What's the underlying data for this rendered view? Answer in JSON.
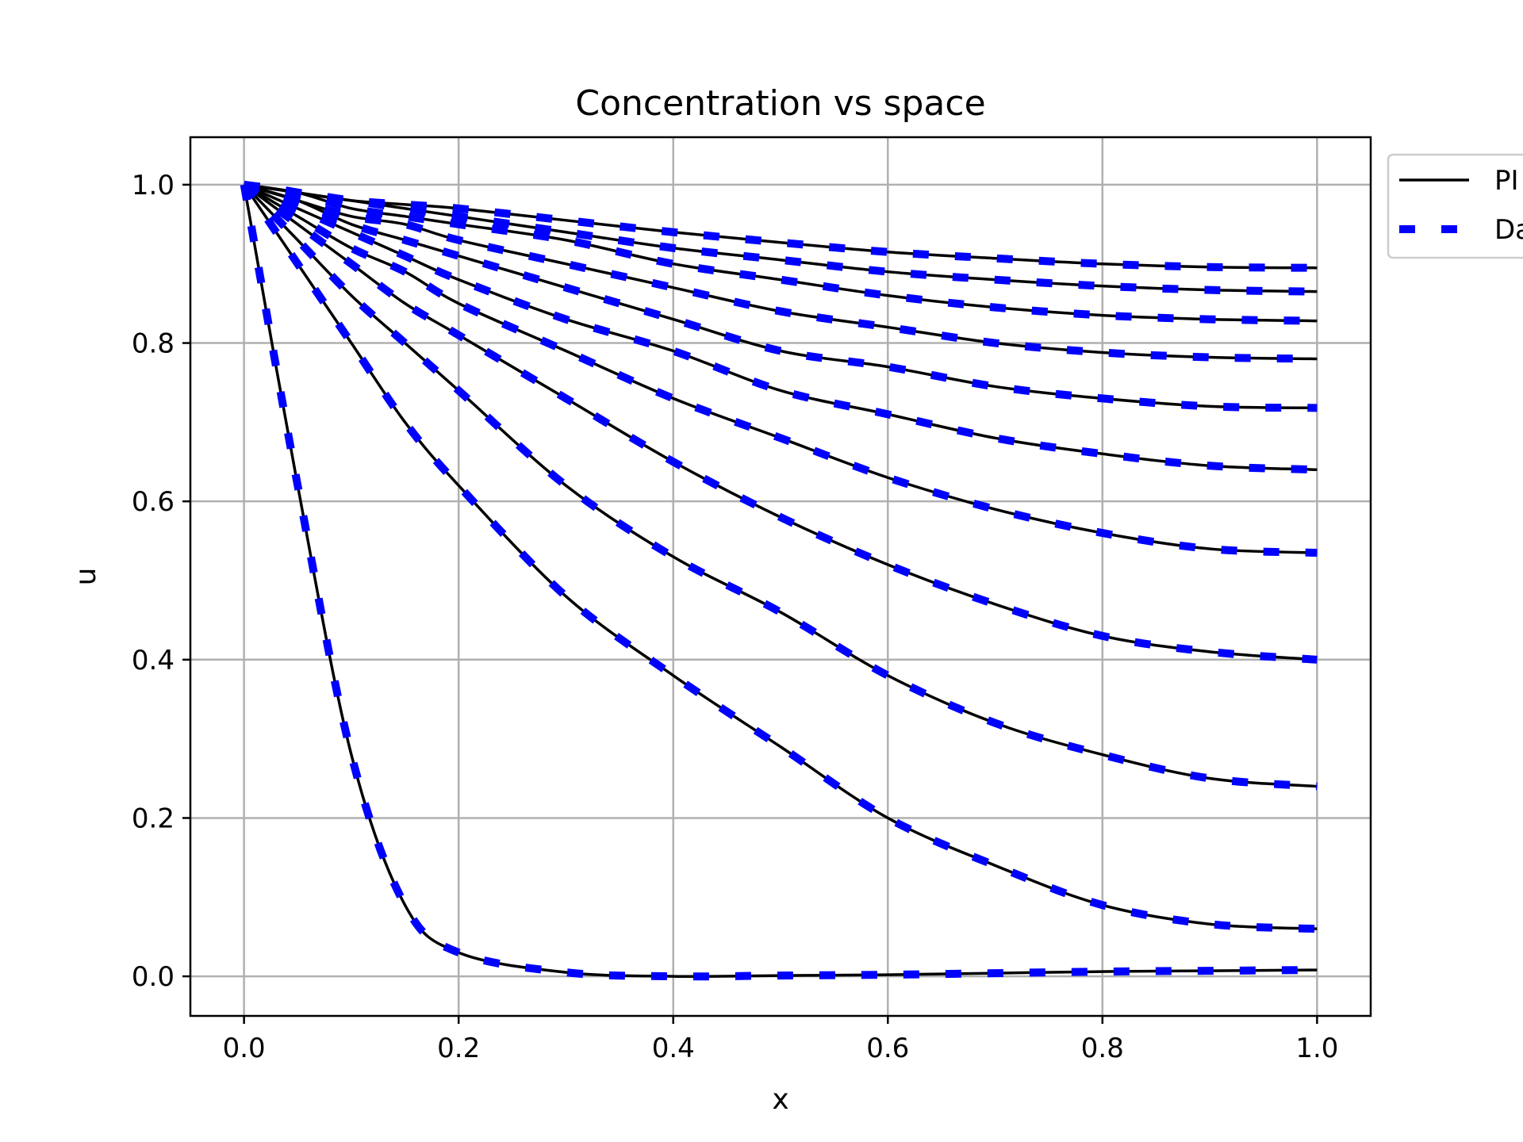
{
  "chart_data": {
    "type": "line",
    "title": "Concentration vs space",
    "xlabel": "x",
    "ylabel": "u",
    "xlim": [
      -0.05,
      1.05
    ],
    "ylim": [
      -0.05,
      1.06
    ],
    "xticks": [
      0.0,
      0.2,
      0.4,
      0.6,
      0.8,
      1.0
    ],
    "xtick_labels": [
      "0.0",
      "0.2",
      "0.4",
      "0.6",
      "0.8",
      "1.0"
    ],
    "yticks": [
      0.0,
      0.2,
      0.4,
      0.6,
      0.8,
      1.0
    ],
    "ytick_labels": [
      "0.0",
      "0.2",
      "0.4",
      "0.6",
      "0.8",
      "1.0"
    ],
    "grid": true,
    "legend": {
      "placement": "outside-top-right",
      "entries": [
        {
          "label": "PI",
          "style": "solid",
          "color": "#000000"
        },
        {
          "label": "Da",
          "style": "dashed",
          "color": "#0000ff"
        }
      ]
    },
    "x": [
      0.0,
      0.05,
      0.1,
      0.15,
      0.2,
      0.3,
      0.4,
      0.5,
      0.6,
      0.7,
      0.8,
      0.9,
      1.0
    ],
    "series": [
      {
        "values": [
          1.0,
          0.62,
          0.28,
          0.09,
          0.03,
          0.005,
          0.0,
          0.001,
          0.002,
          0.004,
          0.006,
          0.007,
          0.008
        ]
      },
      {
        "values": [
          1.0,
          0.9,
          0.8,
          0.7,
          0.62,
          0.48,
          0.38,
          0.29,
          0.2,
          0.14,
          0.09,
          0.066,
          0.06
        ]
      },
      {
        "values": [
          1.0,
          0.93,
          0.86,
          0.8,
          0.74,
          0.62,
          0.53,
          0.46,
          0.38,
          0.32,
          0.28,
          0.25,
          0.24
        ]
      },
      {
        "values": [
          1.0,
          0.95,
          0.9,
          0.85,
          0.81,
          0.73,
          0.65,
          0.58,
          0.52,
          0.47,
          0.43,
          0.41,
          0.4
        ]
      },
      {
        "values": [
          1.0,
          0.96,
          0.92,
          0.89,
          0.85,
          0.79,
          0.73,
          0.68,
          0.63,
          0.59,
          0.56,
          0.54,
          0.535
        ]
      },
      {
        "values": [
          1.0,
          0.97,
          0.94,
          0.91,
          0.88,
          0.83,
          0.79,
          0.74,
          0.71,
          0.68,
          0.66,
          0.645,
          0.64
        ]
      },
      {
        "values": [
          1.0,
          0.98,
          0.95,
          0.93,
          0.91,
          0.87,
          0.83,
          0.79,
          0.77,
          0.745,
          0.73,
          0.72,
          0.718
        ]
      },
      {
        "values": [
          1.0,
          0.98,
          0.96,
          0.95,
          0.93,
          0.9,
          0.87,
          0.84,
          0.82,
          0.8,
          0.788,
          0.782,
          0.78
        ]
      },
      {
        "values": [
          1.0,
          0.99,
          0.97,
          0.96,
          0.95,
          0.93,
          0.9,
          0.88,
          0.86,
          0.845,
          0.835,
          0.83,
          0.828
        ]
      },
      {
        "values": [
          1.0,
          0.99,
          0.98,
          0.97,
          0.96,
          0.94,
          0.92,
          0.905,
          0.89,
          0.88,
          0.872,
          0.867,
          0.865
        ]
      },
      {
        "values": [
          1.0,
          0.99,
          0.98,
          0.975,
          0.97,
          0.955,
          0.94,
          0.927,
          0.915,
          0.907,
          0.9,
          0.896,
          0.895
        ]
      }
    ]
  }
}
